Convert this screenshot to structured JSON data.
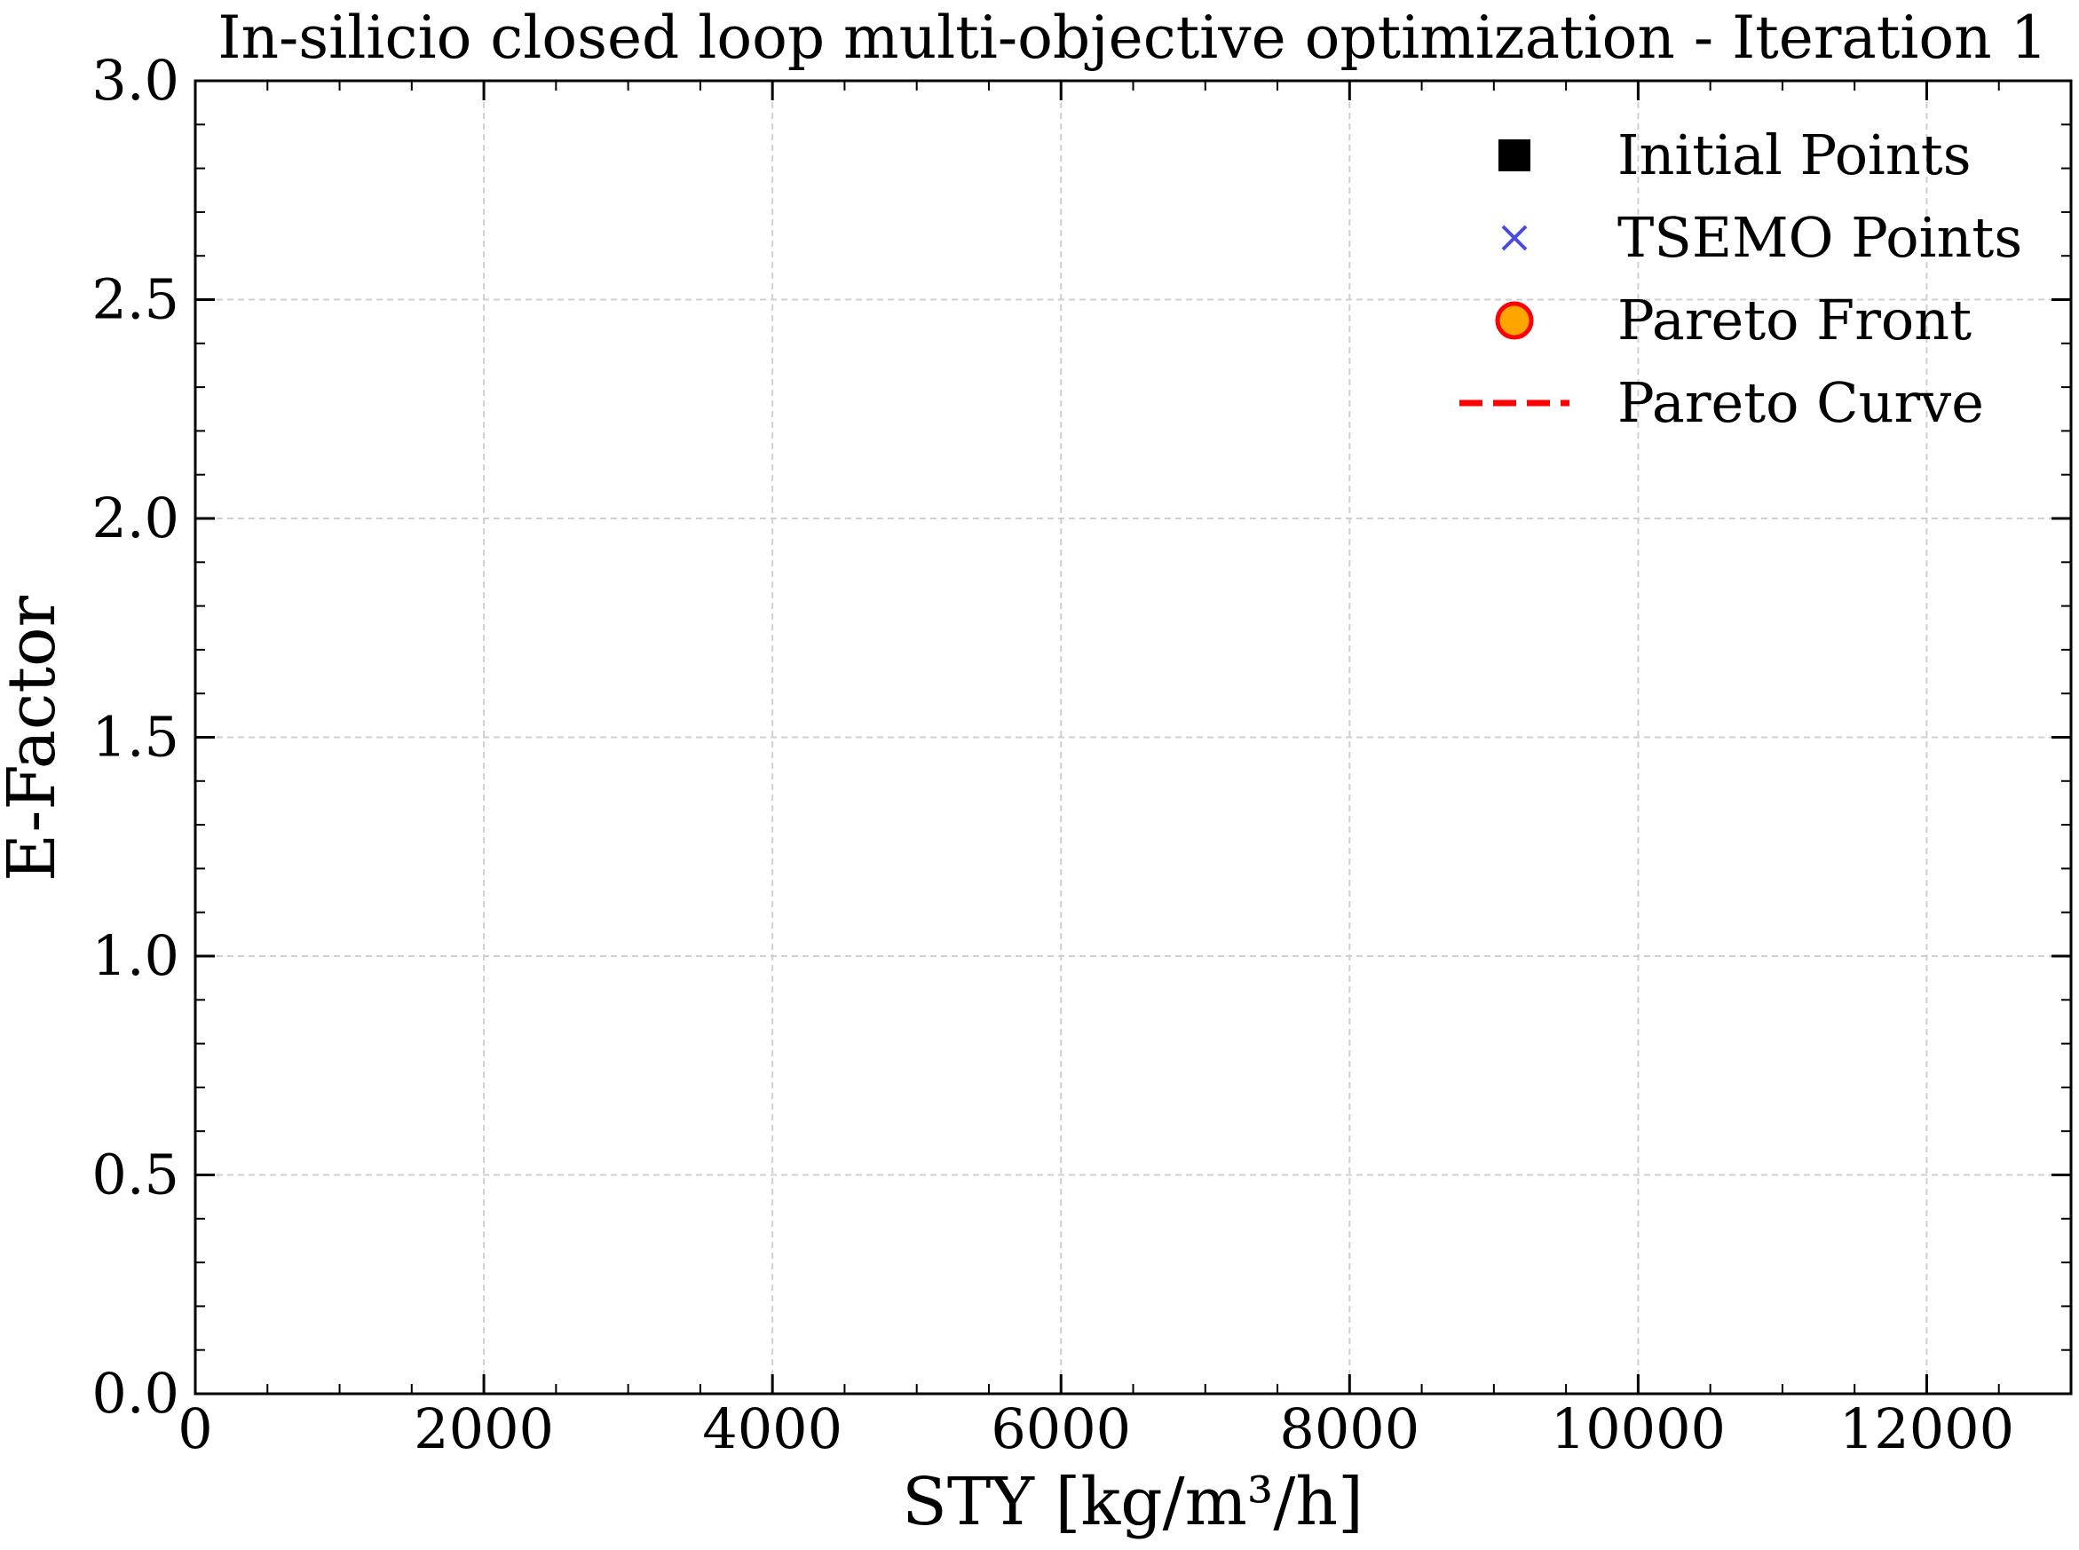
{
  "chart_data": {
    "type": "scatter",
    "title": "In-silicio closed loop multi-objective optimization - Iteration 1",
    "xlabel": "STY [kg/m³/h]",
    "ylabel": "E-Factor",
    "xlim": [
      0,
      13000
    ],
    "ylim": [
      0,
      3.0
    ],
    "xticks": [
      0,
      2000,
      4000,
      6000,
      8000,
      10000,
      12000
    ],
    "xtick_labels": [
      "0",
      "2000",
      "4000",
      "6000",
      "8000",
      "10000",
      "12000"
    ],
    "yticks": [
      0.0,
      0.5,
      1.0,
      1.5,
      2.0,
      2.5,
      3.0
    ],
    "ytick_labels": [
      "0.0",
      "0.5",
      "1.0",
      "1.5",
      "2.0",
      "2.5",
      "3.0"
    ],
    "x_minor_step": 500,
    "y_minor_step": 0.1,
    "grid": true,
    "legend_position": "top-right",
    "series": [
      {
        "name": "Initial Points",
        "marker": "square",
        "color": "#000000",
        "x": [],
        "y": []
      },
      {
        "name": "TSEMO Points",
        "marker": "x",
        "color": "#4b4bdc",
        "x": [],
        "y": []
      },
      {
        "name": "Pareto Front",
        "marker": "circle",
        "color": "#ffa500",
        "edge_color": "#ff0000",
        "x": [],
        "y": []
      },
      {
        "name": "Pareto Curve",
        "marker": "dashed-line",
        "color": "#ff0000",
        "x": [],
        "y": []
      }
    ]
  }
}
